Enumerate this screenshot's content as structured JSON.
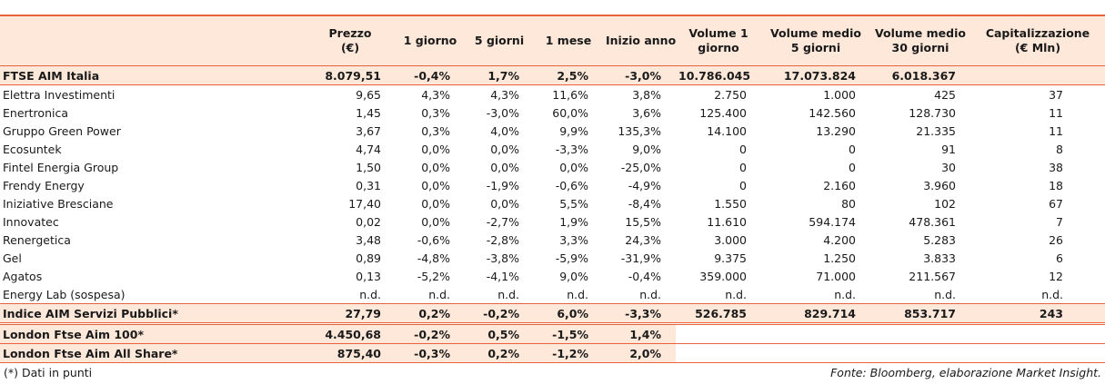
{
  "columns": [
    {
      "line1": "",
      "line2": ""
    },
    {
      "line1": "Prezzo",
      "line2": "(€)"
    },
    {
      "line1": "1 giorno",
      "line2": ""
    },
    {
      "line1": "5 giorni",
      "line2": ""
    },
    {
      "line1": "1 mese",
      "line2": ""
    },
    {
      "line1": "Inizio anno",
      "line2": ""
    },
    {
      "line1": "Volume 1",
      "line2": "giorno"
    },
    {
      "line1": "Volume medio",
      "line2": "5 giorni"
    },
    {
      "line1": "Volume medio",
      "line2": "30 giorni"
    },
    {
      "line1": "Capitalizzazione",
      "line2": "(€ Mln)"
    }
  ],
  "index_main": {
    "name": "FTSE AIM Italia",
    "price": "8.079,51",
    "d1": "-0,4%",
    "d5": "1,7%",
    "m1": "2,5%",
    "ytd": "-3,0%",
    "vol1": "10.786.045",
    "vol5": "17.073.824",
    "vol30": "6.018.367",
    "cap": ""
  },
  "stocks": [
    {
      "name": "Elettra Investimenti",
      "price": "9,65",
      "d1": "4,3%",
      "d5": "4,3%",
      "m1": "11,6%",
      "ytd": "3,8%",
      "vol1": "2.750",
      "vol5": "1.000",
      "vol30": "425",
      "cap": "37"
    },
    {
      "name": "Enertronica",
      "price": "1,45",
      "d1": "0,3%",
      "d5": "-3,0%",
      "m1": "60,0%",
      "ytd": "3,6%",
      "vol1": "125.400",
      "vol5": "142.560",
      "vol30": "128.730",
      "cap": "11"
    },
    {
      "name": "Gruppo Green Power",
      "price": "3,67",
      "d1": "0,3%",
      "d5": "4,0%",
      "m1": "9,9%",
      "ytd": "135,3%",
      "vol1": "14.100",
      "vol5": "13.290",
      "vol30": "21.335",
      "cap": "11"
    },
    {
      "name": "Ecosuntek",
      "price": "4,74",
      "d1": "0,0%",
      "d5": "0,0%",
      "m1": "-3,3%",
      "ytd": "9,0%",
      "vol1": "0",
      "vol5": "0",
      "vol30": "91",
      "cap": "8"
    },
    {
      "name": "Fintel Energia Group",
      "price": "1,50",
      "d1": "0,0%",
      "d5": "0,0%",
      "m1": "0,0%",
      "ytd": "-25,0%",
      "vol1": "0",
      "vol5": "0",
      "vol30": "30",
      "cap": "38"
    },
    {
      "name": "Frendy Energy",
      "price": "0,31",
      "d1": "0,0%",
      "d5": "-1,9%",
      "m1": "-0,6%",
      "ytd": "-4,9%",
      "vol1": "0",
      "vol5": "2.160",
      "vol30": "3.960",
      "cap": "18"
    },
    {
      "name": "Iniziative Bresciane",
      "price": "17,40",
      "d1": "0,0%",
      "d5": "0,0%",
      "m1": "5,5%",
      "ytd": "-8,4%",
      "vol1": "1.550",
      "vol5": "80",
      "vol30": "102",
      "cap": "67"
    },
    {
      "name": "Innovatec",
      "price": "0,02",
      "d1": "0,0%",
      "d5": "-2,7%",
      "m1": "1,9%",
      "ytd": "15,5%",
      "vol1": "11.610",
      "vol5": "594.174",
      "vol30": "478.361",
      "cap": "7"
    },
    {
      "name": "Renergetica",
      "price": "3,48",
      "d1": "-0,6%",
      "d5": "-2,8%",
      "m1": "3,3%",
      "ytd": "24,3%",
      "vol1": "3.000",
      "vol5": "4.200",
      "vol30": "5.283",
      "cap": "26"
    },
    {
      "name": "Gel",
      "price": "0,89",
      "d1": "-4,8%",
      "d5": "-3,8%",
      "m1": "-5,9%",
      "ytd": "-31,9%",
      "vol1": "9.375",
      "vol5": "1.250",
      "vol30": "3.833",
      "cap": "6"
    },
    {
      "name": "Agatos",
      "price": "0,13",
      "d1": "-5,2%",
      "d5": "-4,1%",
      "m1": "9,0%",
      "ytd": "-0,4%",
      "vol1": "359.000",
      "vol5": "71.000",
      "vol30": "211.567",
      "cap": "12"
    },
    {
      "name": "Energy Lab (sospesa)",
      "price": "n.d.",
      "d1": "n.d.",
      "d5": "n.d.",
      "m1": "n.d.",
      "ytd": "n.d.",
      "vol1": "n.d.",
      "vol5": "n.d.",
      "vol30": "n.d.",
      "cap": "n.d."
    }
  ],
  "index_services": {
    "name": "Indice AIM Servizi Pubblici*",
    "price": "27,79",
    "d1": "0,2%",
    "d5": "-0,2%",
    "m1": "6,0%",
    "ytd": "-3,3%",
    "vol1": "526.785",
    "vol5": "829.714",
    "vol30": "853.717",
    "cap": "243"
  },
  "london": [
    {
      "name": "London Ftse Aim 100*",
      "price": "4.450,68",
      "d1": "-0,2%",
      "d5": "0,5%",
      "m1": "-1,5%",
      "ytd": "1,4%"
    },
    {
      "name": "London Ftse Aim All Share*",
      "price": "875,40",
      "d1": "-0,3%",
      "d5": "0,2%",
      "m1": "-1,2%",
      "ytd": "2,0%"
    }
  ],
  "footer": {
    "note": "(*) Dati in punti",
    "source": "Fonte: Bloomberg, elaborazione Market Insight."
  },
  "colors": {
    "accent_line": "#e8623b",
    "highlight_fill": "#fde8da"
  }
}
